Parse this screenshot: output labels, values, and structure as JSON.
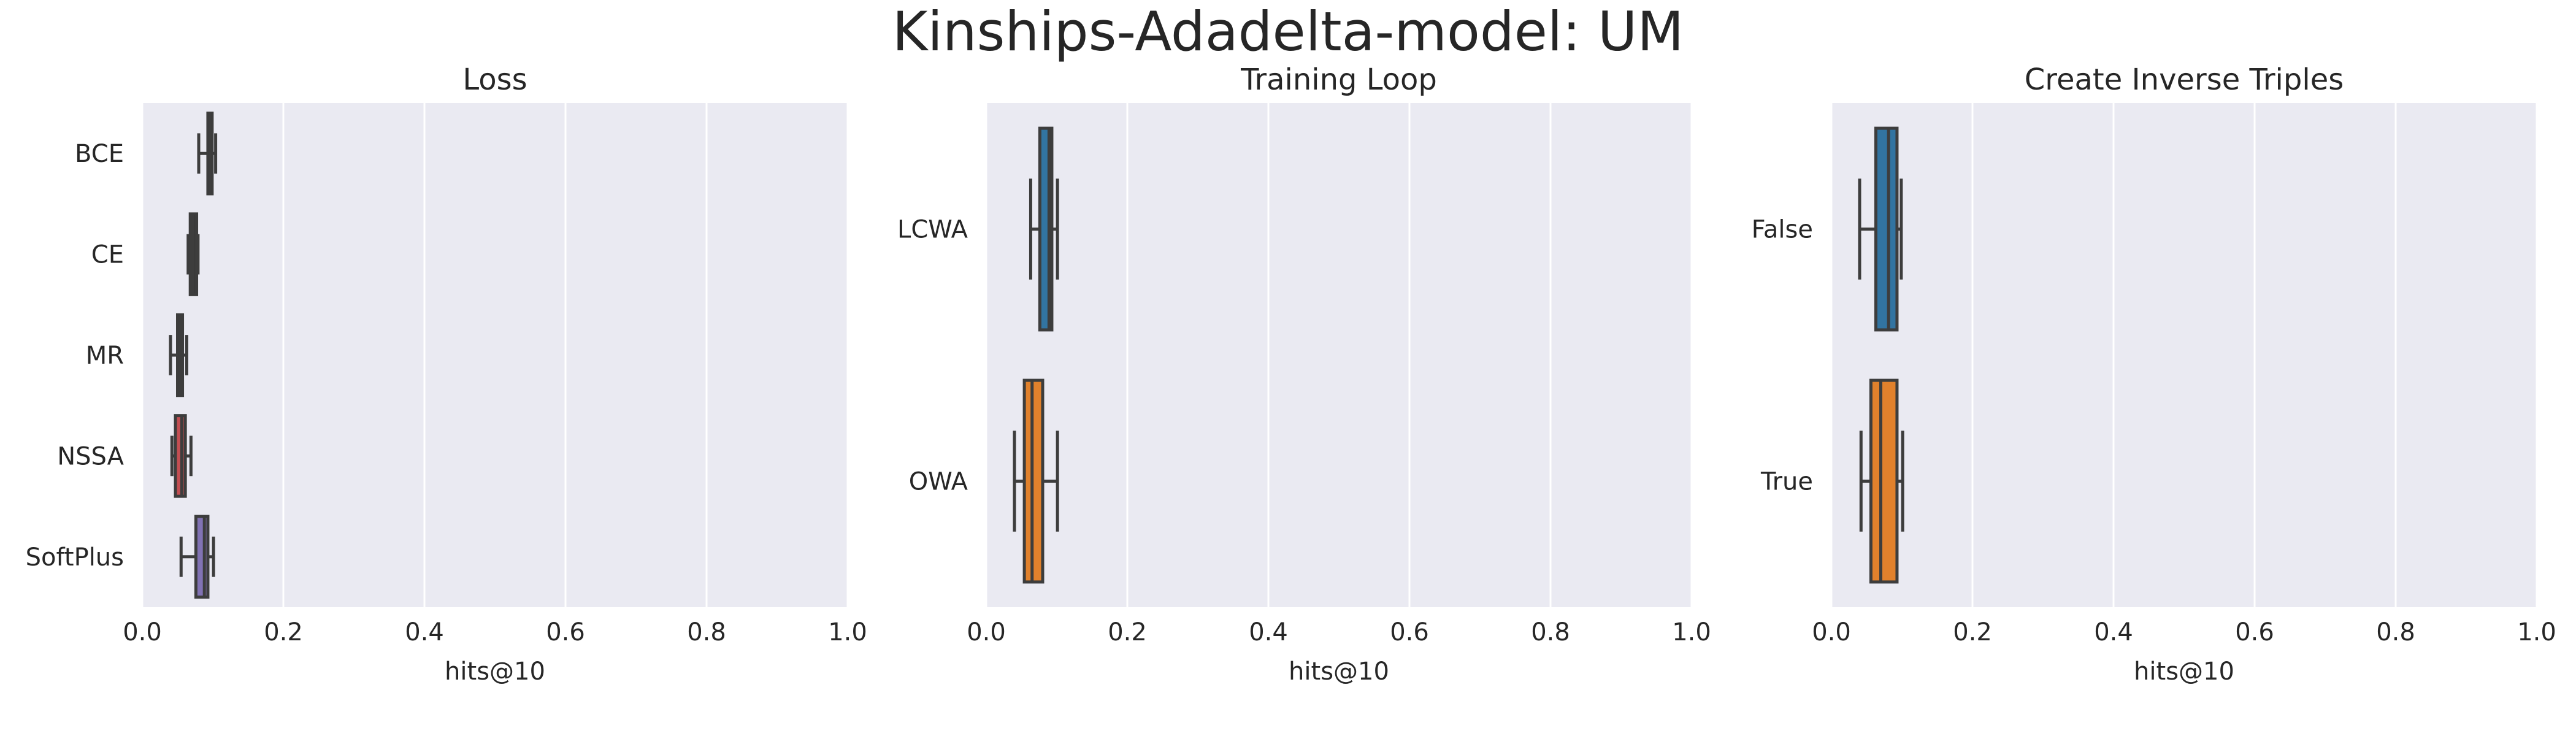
{
  "figure": {
    "title": "Kinships-Adadelta-model: UM"
  },
  "chart_data": [
    {
      "type": "boxplot",
      "orientation": "horizontal",
      "title": "Loss",
      "xlabel": "hits@10",
      "ylabel": "",
      "xlim": [
        0,
        1
      ],
      "xticks": [
        "0.0",
        "0.2",
        "0.4",
        "0.6",
        "0.8",
        "1.0"
      ],
      "grid": true,
      "categories": [
        "BCE",
        "CE",
        "MR",
        "NSSA",
        "SoftPlus"
      ],
      "colors": [
        "#3a3a3a",
        "#3a3a3a",
        "#3a3a3a",
        "#c44e52",
        "#8172b3"
      ],
      "boxes": [
        {
          "whislo": 0.08,
          "q1": 0.093,
          "med": 0.096,
          "q3": 0.099,
          "whishi": 0.104
        },
        {
          "whislo": 0.065,
          "q1": 0.068,
          "med": 0.071,
          "q3": 0.077,
          "whishi": 0.079
        },
        {
          "whislo": 0.04,
          "q1": 0.05,
          "med": 0.054,
          "q3": 0.057,
          "whishi": 0.063
        },
        {
          "whislo": 0.042,
          "q1": 0.047,
          "med": 0.056,
          "q3": 0.061,
          "whishi": 0.069
        },
        {
          "whislo": 0.055,
          "q1": 0.076,
          "med": 0.088,
          "q3": 0.093,
          "whishi": 0.101
        }
      ]
    },
    {
      "type": "boxplot",
      "orientation": "horizontal",
      "title": "Training Loop",
      "xlabel": "hits@10",
      "ylabel": "",
      "xlim": [
        0,
        1
      ],
      "xticks": [
        "0.0",
        "0.2",
        "0.4",
        "0.6",
        "0.8",
        "1.0"
      ],
      "grid": true,
      "categories": [
        "LCWA",
        "OWA"
      ],
      "colors": [
        "#3274a1",
        "#e1812c"
      ],
      "boxes": [
        {
          "whislo": 0.063,
          "q1": 0.076,
          "med": 0.089,
          "q3": 0.093,
          "whishi": 0.101
        },
        {
          "whislo": 0.04,
          "q1": 0.054,
          "med": 0.065,
          "q3": 0.08,
          "whishi": 0.101
        }
      ]
    },
    {
      "type": "boxplot",
      "orientation": "horizontal",
      "title": "Create Inverse Triples",
      "xlabel": "hits@10",
      "ylabel": "",
      "xlim": [
        0,
        1
      ],
      "xticks": [
        "0.0",
        "0.2",
        "0.4",
        "0.6",
        "0.8",
        "1.0"
      ],
      "grid": true,
      "categories": [
        "False",
        "True"
      ],
      "colors": [
        "#3274a1",
        "#e1812c"
      ],
      "boxes": [
        {
          "whislo": 0.04,
          "q1": 0.063,
          "med": 0.081,
          "q3": 0.093,
          "whishi": 0.099
        },
        {
          "whislo": 0.042,
          "q1": 0.056,
          "med": 0.07,
          "q3": 0.093,
          "whishi": 0.101
        }
      ]
    }
  ]
}
